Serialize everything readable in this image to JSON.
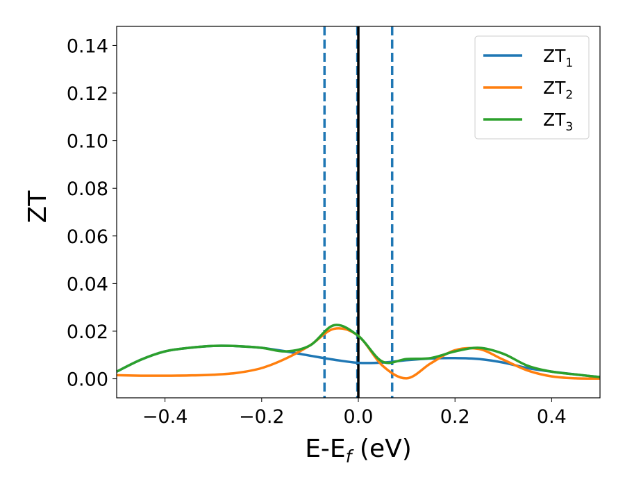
{
  "chart_data": {
    "type": "line",
    "xlabel": {
      "main": "E-E",
      "sub": "f",
      "unit": " (eV)"
    },
    "ylabel": "ZT",
    "xlim": [
      -0.5,
      0.5
    ],
    "ylim": [
      -0.008,
      0.148
    ],
    "xticks": [
      -0.4,
      -0.2,
      0.0,
      0.2,
      0.4
    ],
    "xtick_labels": [
      "−0.4",
      "−0.2",
      "0.0",
      "0.2",
      "0.4"
    ],
    "yticks": [
      0.0,
      0.02,
      0.04,
      0.06,
      0.08,
      0.1,
      0.12,
      0.14
    ],
    "ytick_labels": [
      "0.00",
      "0.02",
      "0.04",
      "0.06",
      "0.08",
      "0.10",
      "0.12",
      "0.14"
    ],
    "grid": false,
    "legend_placement": "top-right",
    "vlines": [
      {
        "x": -0.07,
        "style": "dashed",
        "color": "#1f77b4"
      },
      {
        "x": 0.07,
        "style": "dashed",
        "color": "#1f77b4"
      },
      {
        "x": -0.002,
        "style": "dashed",
        "color": "#1f77b4"
      },
      {
        "x": 0.0,
        "style": "solid",
        "color": "#000000"
      }
    ],
    "series": [
      {
        "name": "ZT",
        "sub": "1",
        "color": "#1f77b4",
        "x": [
          -0.5,
          -0.45,
          -0.4,
          -0.35,
          -0.3,
          -0.25,
          -0.2,
          -0.15,
          -0.1,
          -0.05,
          0.0,
          0.05,
          0.1,
          0.15,
          0.2,
          0.25,
          0.3,
          0.35,
          0.4,
          0.45,
          0.5
        ],
        "values": [
          0.003,
          0.008,
          0.0115,
          0.013,
          0.0138,
          0.0137,
          0.013,
          0.0115,
          0.0097,
          0.008,
          0.0067,
          0.0068,
          0.0078,
          0.0085,
          0.0087,
          0.0083,
          0.0068,
          0.0045,
          0.003,
          0.0018,
          0.0007
        ]
      },
      {
        "name": "ZT",
        "sub": "2",
        "color": "#ff7f0e",
        "x": [
          -0.5,
          -0.45,
          -0.4,
          -0.35,
          -0.3,
          -0.25,
          -0.2,
          -0.15,
          -0.1,
          -0.05,
          0.0,
          0.05,
          0.1,
          0.15,
          0.2,
          0.25,
          0.3,
          0.35,
          0.4,
          0.45,
          0.5
        ],
        "values": [
          0.0015,
          0.0013,
          0.0013,
          0.0014,
          0.0017,
          0.0025,
          0.0045,
          0.0085,
          0.014,
          0.021,
          0.018,
          0.0055,
          0.0002,
          0.0065,
          0.012,
          0.0125,
          0.008,
          0.0035,
          0.001,
          0.0002,
          0.0001
        ]
      },
      {
        "name": "ZT",
        "sub": "3",
        "color": "#2ca02c",
        "x": [
          -0.5,
          -0.45,
          -0.4,
          -0.35,
          -0.3,
          -0.25,
          -0.2,
          -0.15,
          -0.1,
          -0.05,
          0.0,
          0.05,
          0.1,
          0.15,
          0.2,
          0.25,
          0.3,
          0.35,
          0.4,
          0.45,
          0.5
        ],
        "values": [
          0.003,
          0.008,
          0.0115,
          0.013,
          0.0138,
          0.0137,
          0.013,
          0.0115,
          0.014,
          0.0225,
          0.018,
          0.0072,
          0.0083,
          0.0087,
          0.0115,
          0.013,
          0.0105,
          0.0055,
          0.003,
          0.0018,
          0.0007
        ]
      }
    ]
  }
}
